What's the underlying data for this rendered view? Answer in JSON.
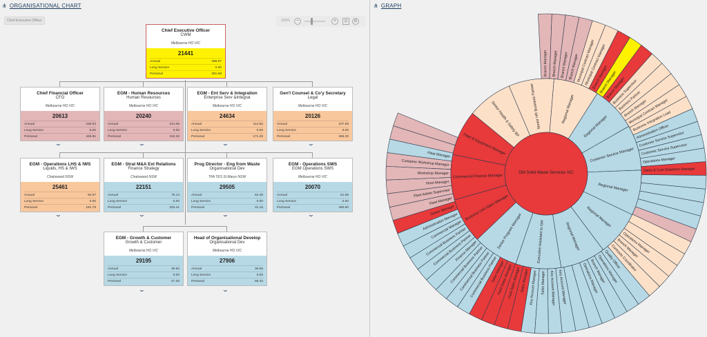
{
  "left_panel": {
    "title": "ORGANISATIONAL CHART",
    "title_icon": "hierarchy-icon",
    "breadcrumb": "Chief Executive Officer",
    "zoom": {
      "percent": "100%",
      "minus": "−",
      "plus": "+"
    }
  },
  "right_panel": {
    "title": "GRAPH",
    "title_icon": "hierarchy-icon"
  },
  "labels": {
    "annual": "Annual",
    "long_service": "Long Service",
    "personal": "Personal"
  },
  "colors": {
    "pink": "#e3b6b8",
    "orange": "#f9c79c",
    "blue": "#b7d9e6",
    "yellow": "#fff200",
    "red": "#e8393b",
    "peach": "#fde0c8"
  },
  "cards": [
    {
      "title": "Chief Executive Officer",
      "sub": "CWM",
      "loc": "Melbourne HO VIC",
      "num": "21441",
      "annual": "386.97",
      "long": "0.00",
      "personal": "391.69",
      "color": "yellow",
      "chevron": false
    },
    {
      "title": "Chief Financial Officer",
      "sub": "CFO",
      "loc": "Melbourne HO VIC",
      "num": "20613",
      "annual": "236.02",
      "long": "0.00",
      "personal": "446.81",
      "color": "pink",
      "chevron": true
    },
    {
      "title": "EGM - Human Resources",
      "sub": "Human Resources",
      "loc": "Melbourne HO VIC",
      "num": "20240",
      "annual": "214.05",
      "long": "0.00",
      "personal": "410.32",
      "color": "pink",
      "chevron": true
    },
    {
      "title": "EGM - Ent Serv & Integration",
      "sub": "Enterprise Serv &Integrat",
      "loc": "Melbourne HO VIC",
      "num": "24634",
      "annual": "114.52",
      "long": "0.00",
      "personal": "171.26",
      "color": "orange",
      "chevron": true
    },
    {
      "title": "Gen'l Counsel & Co'y Secretary",
      "sub": "Legal",
      "loc": "Melbourne HO VIC",
      "num": "20126",
      "annual": "107.59",
      "long": "0.00",
      "personal": "466.20",
      "color": "orange",
      "chevron": true
    },
    {
      "title": "EGM - Operations LHS & IWS",
      "sub": "Liquids, HS & IWS",
      "loc": "Chatswood NSW",
      "num": "25461",
      "annual": "92.57",
      "long": "0.00",
      "personal": "181.79",
      "color": "orange",
      "chevron": true
    },
    {
      "title": "EGM - Strat M&A Ext Relations",
      "sub": "Finance Strategy",
      "loc": "Chatswood NSW",
      "num": "22151",
      "annual": "76.13",
      "long": "0.00",
      "personal": "334.41",
      "color": "blue",
      "chevron": true
    },
    {
      "title": "Prog Director - Eng from Waste",
      "sub": "Organisational Dev",
      "loc": "TFA TES St Marys NSW",
      "num": "29505",
      "annual": "62.36",
      "long": "0.00",
      "personal": "31.16",
      "color": "blue",
      "chevron": true
    },
    {
      "title": "EGM - Operations SWS",
      "sub": "EGM Operations SWS",
      "loc": "Melbourne HO VIC",
      "num": "20070",
      "annual": "51.56",
      "long": "0.00",
      "personal": "450.60",
      "color": "blue",
      "chevron": true
    },
    {
      "title": "EGM - Growth & Customer",
      "sub": "Growth & Customer",
      "loc": "Melbourne HO VIC",
      "num": "29195",
      "annual": "49.92",
      "long": "0.00",
      "personal": "47.26",
      "color": "blue",
      "chevron": true
    },
    {
      "title": "Head of Organisational Develop",
      "sub": "Organisational Dev",
      "loc": "Melbourne HO VIC",
      "num": "27906",
      "annual": "35.66",
      "long": "0.00",
      "personal": "95.34",
      "color": "blue",
      "chevron": true
    }
  ],
  "sunburst": {
    "center": "GM Solid Waste Services VIC",
    "inner": [
      {
        "label": "Senior HR Business Partner",
        "color": "peach"
      },
      {
        "label": "Regional Manager",
        "color": "peach"
      },
      {
        "label": "Regional Manager",
        "color": "blue"
      },
      {
        "label": "Customer Service Manager",
        "color": "blue"
      },
      {
        "label": "Regional Manager",
        "color": "blue"
      },
      {
        "label": "Regional Manager",
        "color": "blue"
      },
      {
        "label": "Regional Manager",
        "color": "blue"
      },
      {
        "label": "Executive Assistant to GM",
        "color": "blue"
      },
      {
        "label": "Senior Program Manager",
        "color": "blue"
      },
      {
        "label": "Business Unit Sales Manager",
        "color": "red"
      },
      {
        "label": "Commercial Finance Manager",
        "color": "red"
      },
      {
        "label": "Fleet & Equipment Manager",
        "color": "red"
      },
      {
        "label": "Senior Health & Safety BP",
        "color": "peach"
      }
    ],
    "outer": [
      {
        "label": "Branch Manager",
        "color": "pink"
      },
      {
        "label": "Branch Manager",
        "color": "pink"
      },
      {
        "label": "Branch Manager",
        "color": "pink"
      },
      {
        "label": "Branch Manager",
        "color": "pink"
      },
      {
        "label": "Municipal Contract Manager",
        "color": "peach"
      },
      {
        "label": "Municipal Contract Manager",
        "color": "peach"
      },
      {
        "label": "Branch Manager",
        "color": "red"
      },
      {
        "label": "Branch Manager",
        "color": "yellow"
      },
      {
        "label": "Branch Manager",
        "color": "red"
      },
      {
        "label": "Business Supervisor",
        "color": "peach"
      },
      {
        "label": "Business Partner",
        "color": "peach"
      },
      {
        "label": "Branch Manager",
        "color": "peach"
      },
      {
        "label": "Municipal Contract Manager",
        "color": "peach"
      },
      {
        "label": "Business Integration Lead",
        "color": "peach"
      },
      {
        "label": "Administration Officer",
        "color": "blue"
      },
      {
        "label": "Customer Service Supervisor",
        "color": "blue"
      },
      {
        "label": "Customer Service Supervisor",
        "color": "blue"
      },
      {
        "label": "Operations Manager",
        "color": "blue"
      },
      {
        "label": "Sales & Cust Relations Manager",
        "color": "red"
      },
      {
        "label": "",
        "color": "blue"
      },
      {
        "label": "",
        "color": "blue"
      },
      {
        "label": "",
        "color": "blue"
      },
      {
        "label": "",
        "color": "blue"
      },
      {
        "label": "",
        "color": "pink"
      },
      {
        "label": "",
        "color": "peach"
      },
      {
        "label": "",
        "color": "peach"
      },
      {
        "label": "Operations Manager",
        "color": "peach"
      },
      {
        "label": "Branch Manager",
        "color": "peach"
      },
      {
        "label": "Contracts Coordinator",
        "color": "peach"
      },
      {
        "label": "Quality Officer",
        "color": "blue"
      },
      {
        "label": "Operations Manager",
        "color": "blue"
      },
      {
        "label": "Branch Manager",
        "color": "blue"
      },
      {
        "label": "Operations Manager",
        "color": "blue"
      },
      {
        "label": "",
        "color": "blue"
      },
      {
        "label": "",
        "color": "blue"
      },
      {
        "label": "Key Account Manager",
        "color": "blue"
      },
      {
        "label": "Key Account Manager",
        "color": "blue"
      },
      {
        "label": "Sales Manager",
        "color": "blue"
      },
      {
        "label": "Key Account Manager",
        "color": "blue"
      },
      {
        "label": "Sales Manager",
        "color": "red"
      },
      {
        "label": "Field Sales Manager",
        "color": "red"
      },
      {
        "label": "Field Sales Manager",
        "color": "red"
      },
      {
        "label": "Sales Manager",
        "color": "red"
      },
      {
        "label": "Commercial Business Partner",
        "color": "blue"
      },
      {
        "label": "Commercial Business Partner",
        "color": "blue"
      },
      {
        "label": "Commercial Business Partner",
        "color": "blue"
      },
      {
        "label": "Finance Manager",
        "color": "blue"
      },
      {
        "label": "Commercial Business Partner",
        "color": "blue"
      },
      {
        "label": "Commercial Business Partner",
        "color": "blue"
      },
      {
        "label": "Commercial Manager",
        "color": "blue"
      },
      {
        "label": "Administration Manager",
        "color": "blue"
      },
      {
        "label": "Senior Manager",
        "color": "red"
      },
      {
        "label": "Fleet Manager",
        "color": "pink"
      },
      {
        "label": "Fleet Admin Supervisor",
        "color": "pink"
      },
      {
        "label": "Fleet Manager",
        "color": "pink"
      },
      {
        "label": "Workshop Manager",
        "color": "pink"
      },
      {
        "label": "Container Workshop Manager",
        "color": "pink"
      },
      {
        "label": "Fleet Manager",
        "color": "blue"
      },
      {
        "label": "",
        "color": "pink"
      },
      {
        "label": "",
        "color": "pink"
      }
    ]
  }
}
